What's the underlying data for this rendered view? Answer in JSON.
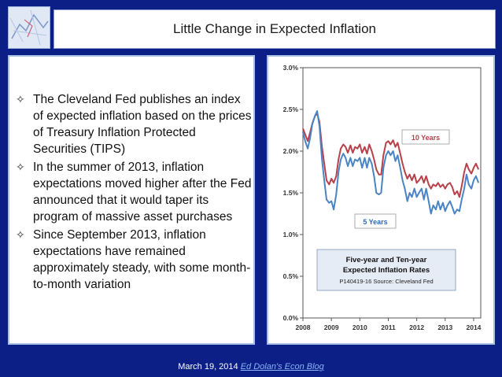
{
  "slide": {
    "title": "Little Change in Expected Inflation",
    "bullets": [
      "The Cleveland Fed publishes an index of expected inflation based on the prices of Treasury Inflation Protected Securities (TIPS)",
      "In the summer of 2013, inflation expectations moved higher after the Fed announced that it would taper its program of massive asset purchases",
      "Since September 2013, inflation expectations have remained approximately steady, with some month-to-month variation"
    ],
    "footer": {
      "date": "March 19, 2014",
      "link": "Ed Dolan's Econ Blog"
    }
  },
  "chart_data": {
    "type": "line",
    "title": "Five-year and Ten-year Expected Inflation Rates",
    "source": "P140419-16 Source: Cleveland Fed",
    "xlim": [
      2008,
      2014.25
    ],
    "ylim": [
      0,
      3
    ],
    "xticks": [
      2008,
      2009,
      2010,
      2011,
      2012,
      2013,
      2014
    ],
    "xtick_labels": [
      "2008",
      "2009",
      "2010",
      "2011",
      "2012",
      "2013",
      "2014"
    ],
    "yticks": [
      0,
      0.5,
      1,
      1.5,
      2,
      2.5,
      3
    ],
    "ytick_labels": [
      "0.0%",
      "0.5%",
      "1.0%",
      "1.5%",
      "2.0%",
      "2.5%",
      "3.0%"
    ],
    "grid": false,
    "series": [
      {
        "name": "10 Years",
        "color": "#b8404a",
        "x": [
          2008.0,
          2008.08,
          2008.17,
          2008.25,
          2008.33,
          2008.42,
          2008.5,
          2008.58,
          2008.67,
          2008.75,
          2008.83,
          2008.92,
          2009.0,
          2009.08,
          2009.17,
          2009.25,
          2009.33,
          2009.42,
          2009.5,
          2009.58,
          2009.67,
          2009.75,
          2009.83,
          2009.92,
          2010.0,
          2010.08,
          2010.17,
          2010.25,
          2010.33,
          2010.42,
          2010.5,
          2010.58,
          2010.67,
          2010.75,
          2010.83,
          2010.92,
          2011.0,
          2011.08,
          2011.17,
          2011.25,
          2011.33,
          2011.42,
          2011.5,
          2011.58,
          2011.67,
          2011.75,
          2011.83,
          2011.92,
          2012.0,
          2012.08,
          2012.17,
          2012.25,
          2012.33,
          2012.42,
          2012.5,
          2012.58,
          2012.67,
          2012.75,
          2012.83,
          2012.92,
          2013.0,
          2013.08,
          2013.17,
          2013.25,
          2013.33,
          2013.42,
          2013.5,
          2013.58,
          2013.67,
          2013.75,
          2013.83,
          2013.92,
          2014.0,
          2014.08,
          2014.17
        ],
        "values": [
          2.27,
          2.2,
          2.12,
          2.22,
          2.33,
          2.42,
          2.45,
          2.35,
          2.05,
          1.85,
          1.65,
          1.6,
          1.67,
          1.62,
          1.7,
          1.9,
          2.03,
          2.08,
          2.05,
          1.98,
          2.07,
          1.98,
          2.05,
          2.03,
          2.08,
          1.98,
          2.05,
          1.97,
          2.08,
          2.0,
          1.9,
          1.78,
          1.72,
          1.72,
          1.95,
          2.1,
          2.12,
          2.08,
          2.13,
          2.05,
          2.1,
          1.97,
          1.85,
          1.75,
          1.67,
          1.72,
          1.65,
          1.72,
          1.62,
          1.65,
          1.7,
          1.62,
          1.7,
          1.6,
          1.55,
          1.6,
          1.58,
          1.62,
          1.57,
          1.6,
          1.55,
          1.6,
          1.62,
          1.57,
          1.48,
          1.52,
          1.45,
          1.58,
          1.75,
          1.85,
          1.78,
          1.73,
          1.8,
          1.85,
          1.78
        ]
      },
      {
        "name": "5 Years",
        "color": "#4a84c4",
        "x": [
          2008.0,
          2008.08,
          2008.17,
          2008.25,
          2008.33,
          2008.42,
          2008.5,
          2008.58,
          2008.67,
          2008.75,
          2008.83,
          2008.92,
          2009.0,
          2009.08,
          2009.17,
          2009.25,
          2009.33,
          2009.42,
          2009.5,
          2009.58,
          2009.67,
          2009.75,
          2009.83,
          2009.92,
          2010.0,
          2010.08,
          2010.17,
          2010.25,
          2010.33,
          2010.42,
          2010.5,
          2010.58,
          2010.67,
          2010.75,
          2010.83,
          2010.92,
          2011.0,
          2011.08,
          2011.17,
          2011.25,
          2011.33,
          2011.42,
          2011.5,
          2011.58,
          2011.67,
          2011.75,
          2011.83,
          2011.92,
          2012.0,
          2012.08,
          2012.17,
          2012.25,
          2012.33,
          2012.42,
          2012.5,
          2012.58,
          2012.67,
          2012.75,
          2012.83,
          2012.92,
          2013.0,
          2013.08,
          2013.17,
          2013.25,
          2013.33,
          2013.42,
          2013.5,
          2013.58,
          2013.67,
          2013.75,
          2013.83,
          2013.92,
          2014.0,
          2014.08,
          2014.17
        ],
        "values": [
          2.23,
          2.12,
          2.03,
          2.15,
          2.32,
          2.42,
          2.48,
          2.3,
          1.9,
          1.65,
          1.42,
          1.38,
          1.4,
          1.3,
          1.48,
          1.75,
          1.9,
          1.97,
          1.92,
          1.82,
          1.92,
          1.82,
          1.9,
          1.88,
          1.92,
          1.8,
          1.92,
          1.8,
          1.92,
          1.85,
          1.7,
          1.5,
          1.48,
          1.5,
          1.8,
          1.95,
          2.0,
          1.95,
          2.0,
          1.88,
          1.95,
          1.8,
          1.65,
          1.55,
          1.4,
          1.5,
          1.45,
          1.55,
          1.45,
          1.5,
          1.55,
          1.42,
          1.55,
          1.4,
          1.25,
          1.35,
          1.3,
          1.4,
          1.3,
          1.38,
          1.28,
          1.35,
          1.4,
          1.33,
          1.25,
          1.3,
          1.28,
          1.42,
          1.55,
          1.72,
          1.6,
          1.55,
          1.65,
          1.7,
          1.62
        ]
      }
    ],
    "annotations": [
      {
        "text": "10 Years",
        "color": "#b8404a"
      },
      {
        "text": "5 Years",
        "color": "#2f6db5"
      }
    ]
  }
}
